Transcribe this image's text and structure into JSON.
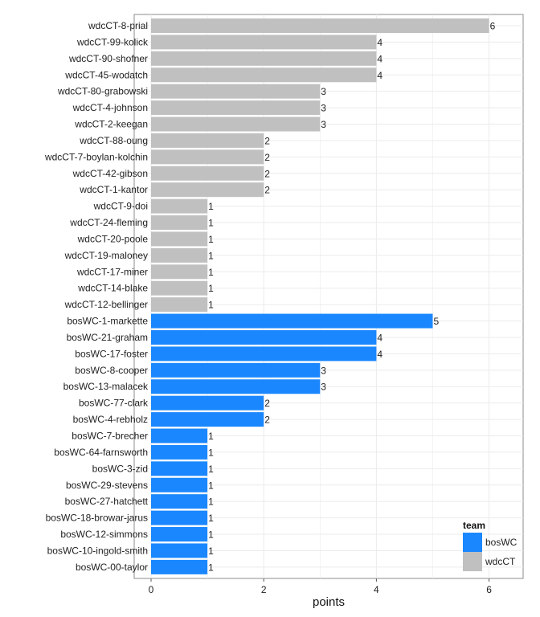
{
  "chart_data": {
    "type": "bar",
    "orientation": "horizontal",
    "xlabel": "points",
    "ylabel": "",
    "xlim": [
      0,
      6.3
    ],
    "xticks": [
      0,
      2,
      4,
      6
    ],
    "grid": true,
    "legend": {
      "title": "team",
      "position": "bottom-right",
      "entries": [
        {
          "name": "bosWC",
          "color": "#1a87ff"
        },
        {
          "name": "wdcCT",
          "color": "#c0c0c0"
        }
      ]
    },
    "bars": [
      {
        "label": "wdcCT-8-prial",
        "value": 6,
        "team": "wdcCT"
      },
      {
        "label": "wdcCT-99-kolick",
        "value": 4,
        "team": "wdcCT"
      },
      {
        "label": "wdcCT-90-shofner",
        "value": 4,
        "team": "wdcCT"
      },
      {
        "label": "wdcCT-45-wodatch",
        "value": 4,
        "team": "wdcCT"
      },
      {
        "label": "wdcCT-80-grabowski",
        "value": 3,
        "team": "wdcCT"
      },
      {
        "label": "wdcCT-4-johnson",
        "value": 3,
        "team": "wdcCT"
      },
      {
        "label": "wdcCT-2-keegan",
        "value": 3,
        "team": "wdcCT"
      },
      {
        "label": "wdcCT-88-oung",
        "value": 2,
        "team": "wdcCT"
      },
      {
        "label": "wdcCT-7-boylan-kolchin",
        "value": 2,
        "team": "wdcCT"
      },
      {
        "label": "wdcCT-42-gibson",
        "value": 2,
        "team": "wdcCT"
      },
      {
        "label": "wdcCT-1-kantor",
        "value": 2,
        "team": "wdcCT"
      },
      {
        "label": "wdcCT-9-doi",
        "value": 1,
        "team": "wdcCT"
      },
      {
        "label": "wdcCT-24-fleming",
        "value": 1,
        "team": "wdcCT"
      },
      {
        "label": "wdcCT-20-poole",
        "value": 1,
        "team": "wdcCT"
      },
      {
        "label": "wdcCT-19-maloney",
        "value": 1,
        "team": "wdcCT"
      },
      {
        "label": "wdcCT-17-miner",
        "value": 1,
        "team": "wdcCT"
      },
      {
        "label": "wdcCT-14-blake",
        "value": 1,
        "team": "wdcCT"
      },
      {
        "label": "wdcCT-12-bellinger",
        "value": 1,
        "team": "wdcCT"
      },
      {
        "label": "bosWC-1-markette",
        "value": 5,
        "team": "bosWC"
      },
      {
        "label": "bosWC-21-graham",
        "value": 4,
        "team": "bosWC"
      },
      {
        "label": "bosWC-17-foster",
        "value": 4,
        "team": "bosWC"
      },
      {
        "label": "bosWC-8-cooper",
        "value": 3,
        "team": "bosWC"
      },
      {
        "label": "bosWC-13-malacek",
        "value": 3,
        "team": "bosWC"
      },
      {
        "label": "bosWC-77-clark",
        "value": 2,
        "team": "bosWC"
      },
      {
        "label": "bosWC-4-rebholz",
        "value": 2,
        "team": "bosWC"
      },
      {
        "label": "bosWC-7-brecher",
        "value": 1,
        "team": "bosWC"
      },
      {
        "label": "bosWC-64-farnsworth",
        "value": 1,
        "team": "bosWC"
      },
      {
        "label": "bosWC-3-zid",
        "value": 1,
        "team": "bosWC"
      },
      {
        "label": "bosWC-29-stevens",
        "value": 1,
        "team": "bosWC"
      },
      {
        "label": "bosWC-27-hatchett",
        "value": 1,
        "team": "bosWC"
      },
      {
        "label": "bosWC-18-browar-jarus",
        "value": 1,
        "team": "bosWC"
      },
      {
        "label": "bosWC-12-simmons",
        "value": 1,
        "team": "bosWC"
      },
      {
        "label": "bosWC-10-ingold-smith",
        "value": 1,
        "team": "bosWC"
      },
      {
        "label": "bosWC-00-taylor",
        "value": 1,
        "team": "bosWC"
      }
    ]
  }
}
